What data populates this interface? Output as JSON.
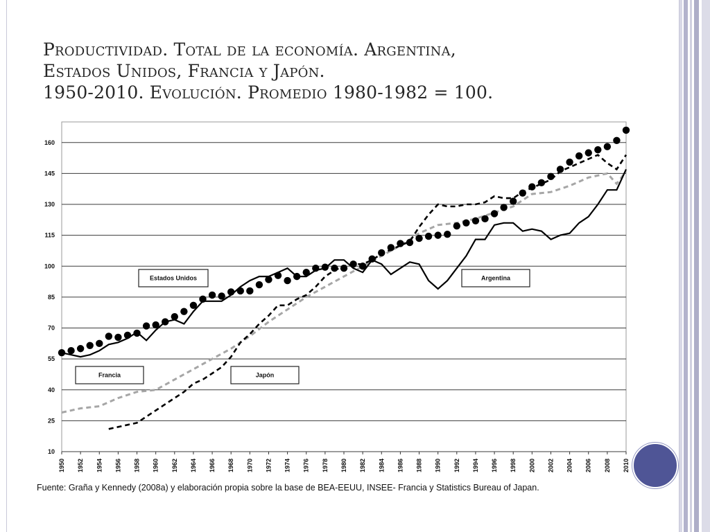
{
  "slide": {
    "title_lines": [
      "Productividad. Total de la economía. Argentina,",
      "Estados Unidos, Francia y Japón.",
      "1950-2010. Evolución. Promedio 1980-1982 = 100."
    ],
    "source": "Fuente: Graña y Kennedy (2008a) y elaboración propia sobre la base de BEA-EEUU, INSEE- Francia y Statistics Bureau of Japan."
  },
  "colors": {
    "accent_circle": "#4f5596",
    "series_black": "#000000",
    "series_grey": "#a6a6a6",
    "grid": "#3a3a3a"
  },
  "chart_data": {
    "type": "line",
    "title": "",
    "xlabel": "",
    "ylabel": "",
    "xlim": [
      1950,
      2010
    ],
    "ylim": [
      10,
      170
    ],
    "yticks": [
      10,
      25,
      40,
      55,
      70,
      85,
      100,
      115,
      130,
      145,
      160
    ],
    "xticks": [
      1950,
      1952,
      1954,
      1956,
      1958,
      1960,
      1962,
      1964,
      1966,
      1968,
      1970,
      1972,
      1974,
      1976,
      1978,
      1980,
      1982,
      1984,
      1986,
      1988,
      1990,
      1992,
      1994,
      1996,
      1998,
      2000,
      2002,
      2004,
      2006,
      2008,
      2010
    ],
    "grid": "horizontal",
    "series": [
      {
        "name": "Estados Unidos",
        "style": "large-dots",
        "x": [
          1950,
          1951,
          1952,
          1953,
          1954,
          1955,
          1956,
          1957,
          1958,
          1959,
          1960,
          1961,
          1962,
          1963,
          1964,
          1965,
          1966,
          1967,
          1968,
          1969,
          1970,
          1971,
          1972,
          1973,
          1974,
          1975,
          1976,
          1977,
          1978,
          1979,
          1980,
          1981,
          1982,
          1983,
          1984,
          1985,
          1986,
          1987,
          1988,
          1989,
          1990,
          1991,
          1992,
          1993,
          1994,
          1995,
          1996,
          1997,
          1998,
          1999,
          2000,
          2001,
          2002,
          2003,
          2004,
          2005,
          2006,
          2007,
          2008,
          2009,
          2010
        ],
        "values": [
          58,
          59,
          60,
          61.5,
          62.5,
          66,
          65.5,
          66.5,
          67.5,
          71,
          71.5,
          73,
          75.5,
          78,
          81,
          84,
          86,
          85.5,
          87.5,
          88,
          88,
          91,
          93.5,
          95.5,
          93,
          95,
          97,
          99,
          99.5,
          99,
          99,
          101,
          100,
          103.5,
          106.5,
          109,
          111,
          111.5,
          113.5,
          114.5,
          115,
          115.5,
          119.5,
          121,
          122,
          123,
          125.5,
          128.5,
          131.5,
          135.5,
          138.5,
          140.5,
          143.5,
          147,
          150.5,
          153.5,
          155,
          156.5,
          158,
          161,
          166
        ]
      },
      {
        "name": "Argentina",
        "style": "solid",
        "x": [
          1950,
          1951,
          1952,
          1953,
          1954,
          1955,
          1956,
          1957,
          1958,
          1959,
          1960,
          1961,
          1962,
          1963,
          1964,
          1965,
          1966,
          1967,
          1968,
          1969,
          1970,
          1971,
          1972,
          1973,
          1974,
          1975,
          1976,
          1977,
          1978,
          1979,
          1980,
          1981,
          1982,
          1983,
          1984,
          1985,
          1986,
          1987,
          1988,
          1989,
          1990,
          1991,
          1992,
          1993,
          1994,
          1995,
          1996,
          1997,
          1998,
          1999,
          2000,
          2001,
          2002,
          2003,
          2004,
          2005,
          2006,
          2007,
          2008,
          2009,
          2010
        ],
        "values": [
          58,
          57,
          56,
          57,
          59,
          62,
          63,
          65,
          68,
          64,
          69,
          73,
          74,
          72,
          78,
          83,
          83,
          83,
          86,
          90,
          93,
          95,
          95,
          97,
          99,
          95,
          95,
          98,
          99,
          103,
          103,
          99,
          97,
          103,
          101,
          96,
          99,
          102,
          101,
          93,
          89,
          93,
          99,
          105,
          113,
          113,
          120,
          121,
          121,
          117,
          118,
          117,
          113,
          115,
          116,
          121,
          124,
          130,
          137,
          137,
          147
        ]
      },
      {
        "name": "Francia",
        "style": "grey-dashed",
        "x": [
          1950,
          1952,
          1954,
          1956,
          1958,
          1960,
          1962,
          1964,
          1966,
          1968,
          1970,
          1972,
          1974,
          1976,
          1978,
          1980,
          1982,
          1984,
          1986,
          1988,
          1990,
          1992,
          1994,
          1996,
          1998,
          2000,
          2002,
          2004,
          2006,
          2008,
          2009,
          2010
        ],
        "values": [
          29,
          31,
          32,
          36,
          39,
          40,
          45,
          50,
          55,
          60,
          66,
          73,
          79,
          85,
          90,
          95,
          100,
          105,
          110,
          116,
          120,
          121,
          123,
          126,
          129,
          135,
          136,
          139,
          143,
          145,
          140,
          146
        ]
      },
      {
        "name": "Japón",
        "style": "black-dashed",
        "x": [
          1955,
          1956,
          1957,
          1958,
          1959,
          1960,
          1961,
          1962,
          1963,
          1964,
          1965,
          1966,
          1967,
          1968,
          1969,
          1970,
          1971,
          1972,
          1973,
          1974,
          1975,
          1976,
          1977,
          1978,
          1979,
          1980,
          1981,
          1982,
          1983,
          1984,
          1985,
          1986,
          1987,
          1988,
          1989,
          1990,
          1991,
          1992,
          1993,
          1994,
          1995,
          1996,
          1997,
          1998,
          1999,
          2000,
          2001,
          2002,
          2003,
          2004,
          2005,
          2006,
          2007,
          2008,
          2009,
          2010
        ],
        "values": [
          21,
          22,
          23,
          24,
          27,
          30,
          33,
          36,
          39,
          43,
          45,
          48,
          51,
          56,
          63,
          67,
          72,
          76,
          81,
          81,
          84,
          86,
          90,
          95,
          98,
          100,
          101,
          101,
          103,
          106,
          108,
          110,
          112,
          119,
          125,
          130,
          129,
          129,
          130,
          130,
          131,
          134,
          133,
          133,
          136,
          138,
          140,
          142,
          146,
          148,
          150,
          152,
          154,
          150,
          147,
          154
        ]
      }
    ],
    "legend_boxes": [
      {
        "label": "Estados Unidos"
      },
      {
        "label": "Argentina"
      },
      {
        "label": "Francia"
      },
      {
        "label": "Japón"
      }
    ]
  }
}
